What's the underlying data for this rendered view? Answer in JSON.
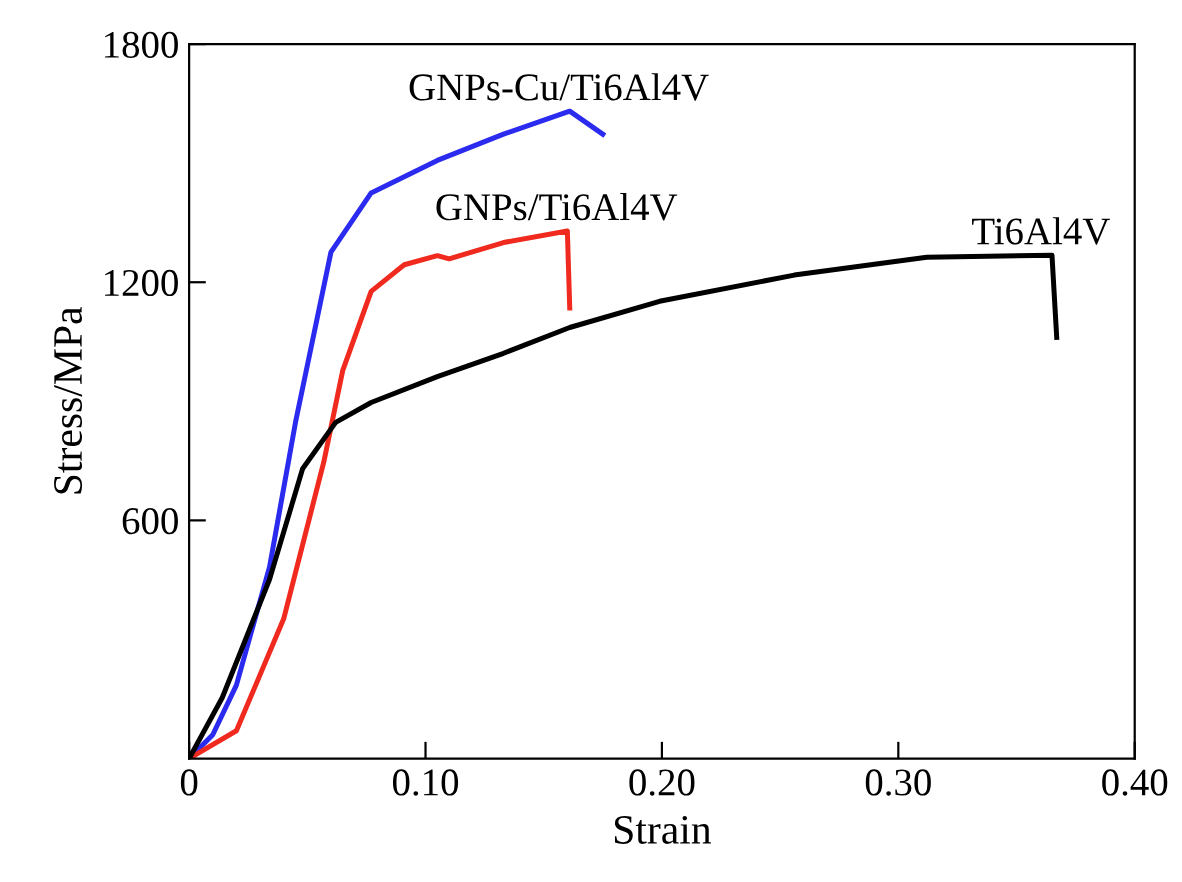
{
  "chart_data": {
    "type": "line",
    "xlabel": "Strain",
    "ylabel": "Stress/MPa",
    "xlim": [
      0,
      0.4
    ],
    "ylim": [
      0,
      1800
    ],
    "xticks": [
      0,
      {
        "value": 0.1,
        "label": "0.10"
      },
      {
        "value": 0.2,
        "label": "0.20"
      },
      {
        "value": 0.3,
        "label": "0.30"
      },
      {
        "value": 0.4,
        "label": "0.40"
      }
    ],
    "yticks": [
      600,
      1200,
      1800
    ],
    "grid": false,
    "legend": false,
    "marker": "none",
    "line_style": "solid",
    "series": [
      {
        "name": "GNPs-Cu/Ti6Al4V",
        "color": "#2b2bf0",
        "x": [
          0,
          0.01,
          0.02,
          0.034,
          0.045,
          0.06,
          0.077,
          0.105,
          0.133,
          0.161,
          0.175
        ],
        "values": [
          0,
          60,
          185,
          482,
          847,
          1276,
          1425,
          1507,
          1573,
          1631,
          1573
        ]
      },
      {
        "name": "GNPs/Ti6Al4V",
        "color": "#f02a1e",
        "x": [
          0,
          0.02,
          0.04,
          0.057,
          0.065,
          0.077,
          0.091,
          0.105,
          0.11,
          0.133,
          0.16,
          0.161
        ],
        "values": [
          0,
          70,
          352,
          748,
          978,
          1177,
          1244,
          1267,
          1259,
          1300,
          1329,
          1135
        ]
      },
      {
        "name": "Ti6Al4V",
        "color": "#000000",
        "x": [
          0,
          0.014,
          0.034,
          0.048,
          0.062,
          0.077,
          0.105,
          0.133,
          0.161,
          0.199,
          0.256,
          0.312,
          0.365,
          0.367
        ],
        "values": [
          0,
          153,
          451,
          730,
          847,
          897,
          962,
          1021,
          1086,
          1152,
          1218,
          1263,
          1268,
          1061
        ]
      }
    ]
  }
}
